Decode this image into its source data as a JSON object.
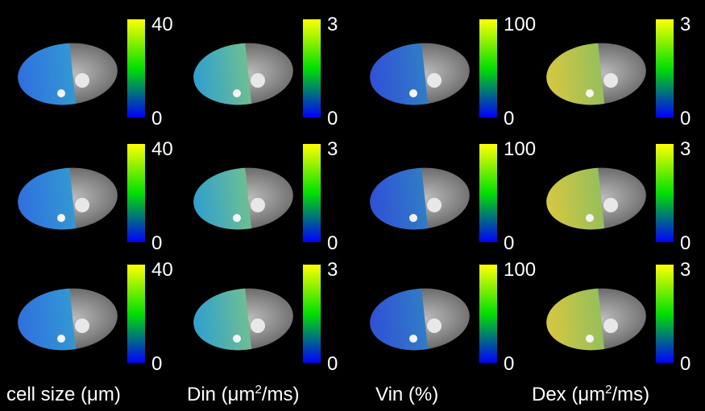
{
  "panels": [
    [
      {
        "max": "40",
        "min": "0"
      },
      {
        "max": "3",
        "min": "0"
      },
      {
        "max": "100",
        "min": "0"
      },
      {
        "max": "3",
        "min": "0"
      }
    ],
    [
      {
        "max": "40",
        "min": "0"
      },
      {
        "max": "3",
        "min": "0"
      },
      {
        "max": "100",
        "min": "0"
      },
      {
        "max": "3",
        "min": "0"
      }
    ],
    [
      {
        "max": "40",
        "min": "0"
      },
      {
        "max": "3",
        "min": "0"
      },
      {
        "max": "100",
        "min": "0"
      },
      {
        "max": "3",
        "min": "0"
      }
    ]
  ],
  "labels": [
    {
      "text": "cell size (μm)"
    },
    {
      "text": "Din (μm",
      "sup": "2",
      "after": "/ms)"
    },
    {
      "text": "Vin (%)"
    },
    {
      "text": "Dex (μm",
      "sup": "2",
      "after": "/ms)"
    }
  ]
}
